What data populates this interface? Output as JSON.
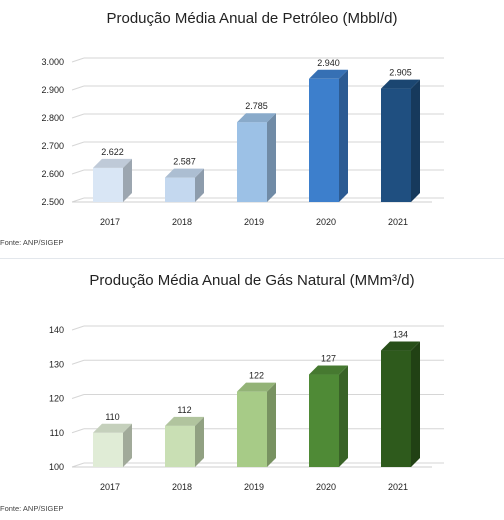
{
  "chart_data": [
    {
      "type": "bar",
      "title": "Produção Média Anual de Petróleo (Mbbl/d)",
      "categories": [
        "2017",
        "2018",
        "2019",
        "2020",
        "2021"
      ],
      "values": [
        2622,
        2587,
        2785,
        2940,
        2905
      ],
      "value_labels": [
        "2.622",
        "2.587",
        "2.785",
        "2.940",
        "2.905"
      ],
      "yticks": [
        "2.500",
        "2.600",
        "2.700",
        "2.800",
        "2.900",
        "3.000"
      ],
      "ylim": [
        2500,
        3000
      ],
      "grid": true,
      "bar_colors": [
        "#d9e6f5",
        "#c4d8ef",
        "#9cc1e6",
        "#3d7fcc",
        "#1f4f80"
      ],
      "source": "Fonte: ANP/SIGEP"
    },
    {
      "type": "bar",
      "title": "Produção Média Anual de Gás Natural (MMm³/d)",
      "categories": [
        "2017",
        "2018",
        "2019",
        "2020",
        "2021"
      ],
      "values": [
        110,
        112,
        122,
        127,
        134
      ],
      "value_labels": [
        "110",
        "112",
        "122",
        "127",
        "134"
      ],
      "yticks": [
        "100",
        "110",
        "120",
        "130",
        "140"
      ],
      "ylim": [
        100,
        140
      ],
      "grid": true,
      "bar_colors": [
        "#e0ecd6",
        "#c9dfb4",
        "#a7cb87",
        "#4f8a36",
        "#2e5a1c"
      ],
      "source": "Fonte: ANP/SIGEP"
    }
  ]
}
